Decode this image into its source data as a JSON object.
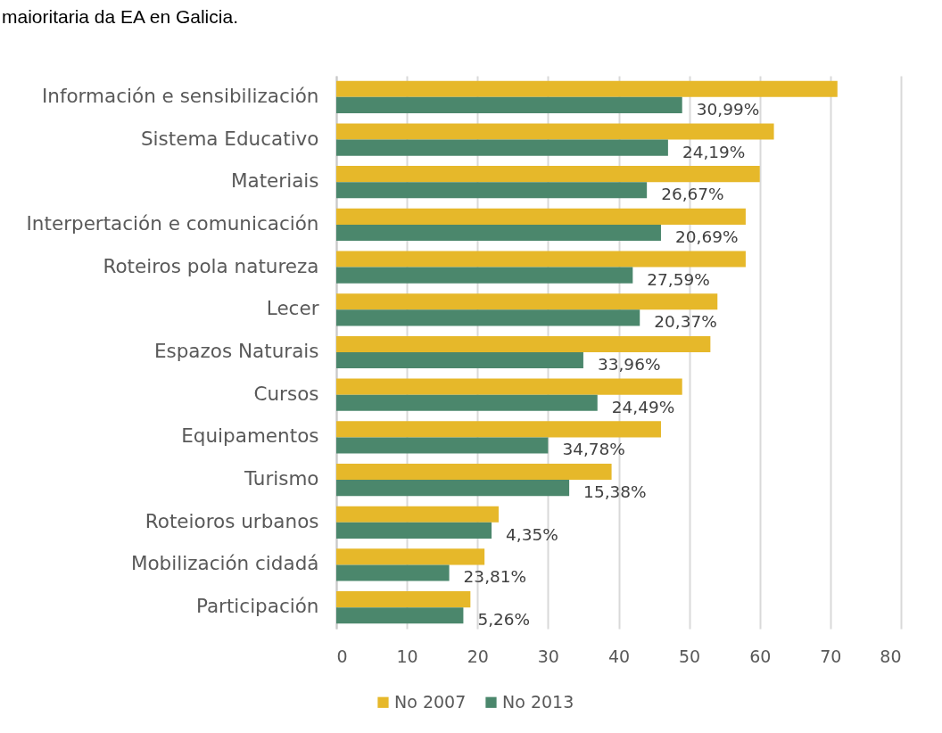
{
  "chart_data": {
    "type": "bar",
    "orientation": "horizontal",
    "categories": [
      "Información e sensibilización",
      "Sistema Educativo",
      "Materiais",
      "Interpertación e comunicación",
      "Roteiros pola natureza",
      "Lecer",
      "Espazos Naturais",
      "Cursos",
      "Equipamentos",
      "Turismo",
      "Roteioros urbanos",
      "Mobilización cidadá",
      "Participación"
    ],
    "series": [
      {
        "name": "No 2007",
        "color": "#e6b82a",
        "values": [
          71,
          62,
          60,
          58,
          58,
          54,
          53,
          49,
          46,
          39,
          23,
          21,
          19
        ]
      },
      {
        "name": "No 2013",
        "color": "#4b876c",
        "values": [
          49,
          47,
          44,
          46,
          42,
          43,
          35,
          37,
          30,
          33,
          22,
          16,
          18
        ]
      }
    ],
    "xlim": [
      0,
      80
    ],
    "xticks": [
      0,
      10,
      20,
      30,
      40,
      50,
      60,
      70,
      80
    ],
    "grid": "x",
    "legend": "bottom",
    "annotations": [
      "maioritaria da EA en Galicia.",
      {
        "text": "30,99%",
        "x": 49,
        "y": "Información e sensibilización"
      },
      {
        "text": "24,19%",
        "x": 47,
        "y": "Sistema Educativo"
      },
      {
        "text": "26,67%",
        "x": 44,
        "y": "Materiais"
      },
      {
        "text": "20,69%",
        "x": 46,
        "y": "Interpertación e comunicación"
      },
      {
        "text": "27,59%",
        "x": 42,
        "y": "Roteiros pola natureza"
      },
      {
        "text": "20,37%",
        "x": 43,
        "y": "Lecer"
      },
      {
        "text": "33,96%",
        "x": 35,
        "y": "Espazos Naturais"
      },
      {
        "text": "24,49%",
        "x": 37,
        "y": "Cursos"
      },
      {
        "text": "34,78%",
        "x": 30,
        "y": "Equipamentos"
      },
      {
        "text": "15,38%",
        "x": 33,
        "y": "Turismo"
      },
      {
        "text": "4,35%",
        "x": 22,
        "y": "Roteioros urbanos"
      },
      {
        "text": "23,81%",
        "x": 16,
        "y": "Mobilización cidadá"
      },
      {
        "text": "5,26%",
        "x": 18,
        "y": "Participación"
      }
    ]
  }
}
